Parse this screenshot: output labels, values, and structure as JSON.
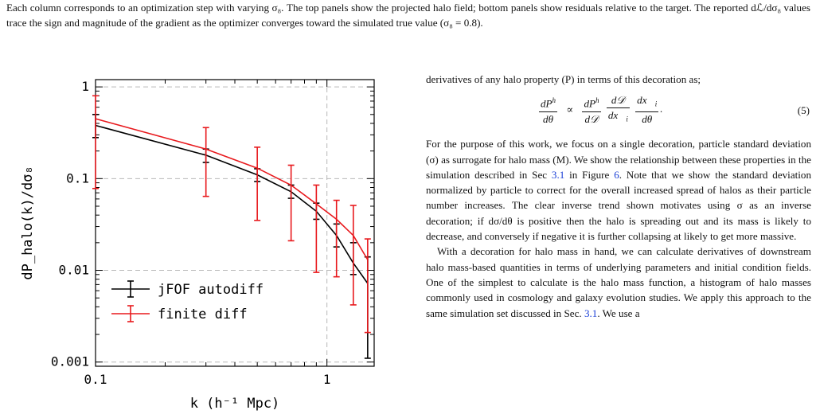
{
  "caption": "Each column corresponds to an optimization step with varying σ₈. The top panels show the projected halo field; bottom panels show residuals relative to the target. The reported dℒ/dσ₈ values trace the sign and magnitude of the gradient as the optimizer converges toward the simulated true value (σ₈ = 0.8).",
  "chart_data": {
    "type": "line",
    "x_scale": "log",
    "y_scale": "log",
    "xlim": [
      0.1,
      1.6
    ],
    "ylim": [
      0.0009,
      1.2
    ],
    "xticks": [
      "0.1",
      "1"
    ],
    "yticks": [
      "0.001",
      "0.01",
      "0.1",
      "1"
    ],
    "xlabel": "k (h⁻¹ Mpc)",
    "ylabel": "dP_halo(k)/dσ₈",
    "grid": true,
    "legend_position": "lower-left",
    "series": [
      {
        "name": "jFOF autodiff",
        "color": "#000000",
        "x": [
          0.1,
          0.3,
          0.5,
          0.7,
          0.9,
          1.1,
          1.3,
          1.5
        ],
        "y": [
          0.38,
          0.18,
          0.11,
          0.072,
          0.044,
          0.024,
          0.012,
          0.0072
        ],
        "err_low": [
          0.28,
          0.15,
          0.093,
          0.061,
          0.036,
          0.018,
          0.009,
          0.0011
        ],
        "err_high": [
          0.5,
          0.21,
          0.128,
          0.085,
          0.054,
          0.032,
          0.02,
          0.014
        ]
      },
      {
        "name": "finite diff",
        "color": "#e8191d",
        "x": [
          0.1,
          0.3,
          0.5,
          0.7,
          0.9,
          1.1,
          1.3,
          1.5
        ],
        "y": [
          0.45,
          0.21,
          0.13,
          0.085,
          0.053,
          0.036,
          0.024,
          0.013
        ],
        "err_low": [
          0.078,
          0.064,
          0.035,
          0.021,
          0.0095,
          0.0085,
          0.0042,
          0.0021
        ],
        "err_high": [
          0.8,
          0.36,
          0.22,
          0.14,
          0.085,
          0.058,
          0.051,
          0.022
        ]
      }
    ]
  },
  "text": {
    "intro": "derivatives of any halo property (P) in terms of this decoration as;",
    "eq_label": "(5)",
    "p1_a": "For the purpose of this work, we focus on a single decoration, particle standard deviation (σ) as surrogate for halo mass (M). We show the relationship between these properties in the simulation described in Sec ",
    "p1_ref1": "3.1",
    "p1_b": " in Figure ",
    "p1_ref2": "6",
    "p1_c": ". Note that we show the standard deviation normalized by particle to correct for the overall increased spread of halos as their particle number increases. The clear inverse trend shown motivates using σ as an inverse decoration; if dσ/dθ is positive then the halo is spreading out and its mass is likely to decrease, and conversely if negative it is further collapsing at likely to get more massive.",
    "p2_a": "With a decoration for halo mass in hand, we can calculate derivatives of downstream halo mass-based quantities in terms of underlying parameters and initial condition fields. One of the simplest to calculate is the halo mass function, a histogram of halo masses commonly used in cosmology and galaxy evolution studies. We apply this approach to the same simulation set discussed in Sec. ",
    "p2_ref": "3.1",
    "p2_b": ". We use a"
  }
}
